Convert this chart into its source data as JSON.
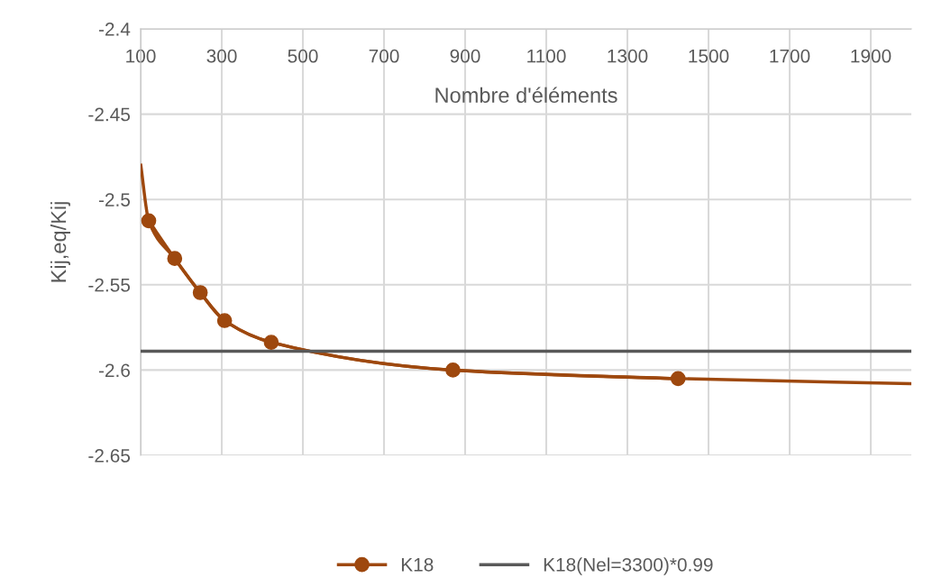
{
  "chart_data": {
    "type": "line",
    "xlabel": "Nombre d'éléments",
    "ylabel": "Kij,eq/Kij",
    "xlim": [
      100,
      2000
    ],
    "xticks": [
      100,
      300,
      500,
      700,
      900,
      1100,
      1300,
      1500,
      1700,
      1900
    ],
    "ylim": [
      -2.65,
      -2.4
    ],
    "yticks": [
      -2.65,
      -2.6,
      -2.55,
      -2.5,
      -2.45,
      -2.4
    ],
    "grid": true,
    "legend": "bottom",
    "line_style": "solid",
    "series": [
      {
        "name": "K18",
        "color": "#9e480e",
        "marker": "circle",
        "x": [
          120,
          184,
          247,
          307,
          422,
          870,
          1425
        ],
        "values": [
          -2.5125,
          -2.5346,
          -2.5546,
          -2.571,
          -2.5837,
          -2.6,
          -2.605
        ]
      },
      {
        "color": "#9e480e",
        "marker": "none",
        "x": [
          100,
          120,
          184,
          247,
          307,
          422,
          870,
          1425,
          2000
        ],
        "values": [
          -2.479,
          -2.5125,
          -2.5346,
          -2.5546,
          -2.571,
          -2.5837,
          -2.6,
          -2.605,
          -2.608
        ]
      },
      {
        "name": "K18(Nel=3300)*0.99",
        "color": "#595959",
        "marker": "none",
        "x": [
          100,
          2000
        ],
        "values": [
          -2.589,
          -2.589
        ]
      }
    ]
  }
}
